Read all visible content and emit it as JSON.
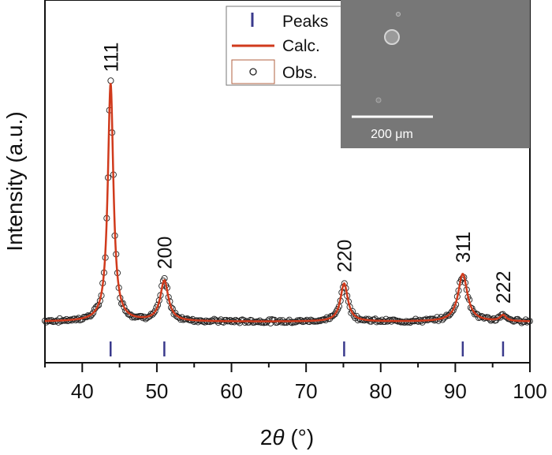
{
  "chart_data": {
    "type": "line",
    "xlabel_prefix": "2",
    "xlabel_symbol": "θ",
    "xlabel_unit": " (°)",
    "ylabel": "Intensity (a.u.)",
    "xlim": [
      35,
      100
    ],
    "xticks": [
      40,
      50,
      60,
      70,
      80,
      90,
      100
    ],
    "y_units": "arbitrary",
    "background": 0.04,
    "colors": {
      "calc": "#d03a1c",
      "obs": "#222222",
      "peaks": "#3a3a8c",
      "inset_bg": "#777777"
    },
    "peaks": [
      {
        "hkl": "111",
        "two_theta": 43.8,
        "height": 1.0,
        "width": 0.45
      },
      {
        "hkl": "200",
        "two_theta": 51.0,
        "height": 0.17,
        "width": 0.65
      },
      {
        "hkl": "220",
        "two_theta": 75.1,
        "height": 0.16,
        "width": 0.6
      },
      {
        "hkl": "311",
        "two_theta": 91.0,
        "height": 0.2,
        "width": 0.75
      },
      {
        "hkl": "222",
        "two_theta": 96.4,
        "height": 0.025,
        "width": 0.5
      }
    ],
    "series": [
      {
        "name": "Peaks",
        "style": "tick"
      },
      {
        "name": "Calc.",
        "style": "line"
      },
      {
        "name": "Obs.",
        "style": "open-circle"
      }
    ]
  },
  "inset": {
    "scale_label": "200 μm"
  }
}
